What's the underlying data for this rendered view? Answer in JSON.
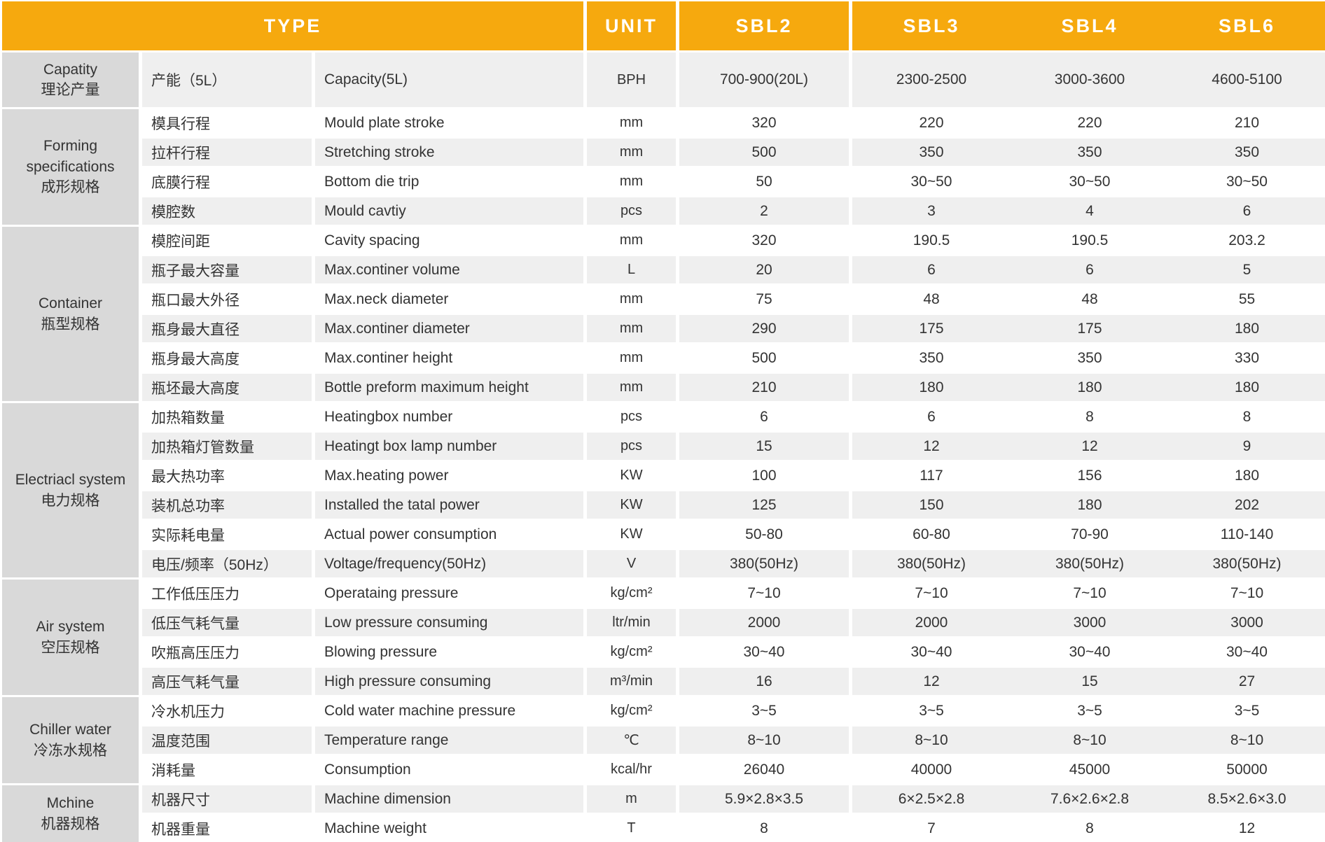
{
  "header": {
    "type_label": "TYPE",
    "unit_label": "UNIT",
    "models": [
      "SBL2",
      "SBL3",
      "SBL4",
      "SBL6"
    ]
  },
  "colors": {
    "header_bg": "#F6A90E",
    "header_text": "#FFFFFF",
    "group_bg": "#D9D9D9",
    "stripe_bg": "#EFEFEF",
    "row_bg": "#FFFFFF",
    "text": "#333333"
  },
  "groups": [
    {
      "name_en": "Capatity",
      "name_cn": "理论产量",
      "rows": [
        {
          "cn": "产能（5L）",
          "en": "Capacity(5L)",
          "unit": "BPH",
          "values": [
            "700-900(20L)",
            "2300-2500",
            "3000-3600",
            "4600-5100"
          ]
        }
      ]
    },
    {
      "name_en": "Forming specifications",
      "name_cn": "成形规格",
      "rows": [
        {
          "cn": "模具行程",
          "en": "Mould plate stroke",
          "unit": "mm",
          "values": [
            "320",
            "220",
            "220",
            "210"
          ]
        },
        {
          "cn": "拉杆行程",
          "en": "Stretching stroke",
          "unit": "mm",
          "values": [
            "500",
            "350",
            "350",
            "350"
          ]
        },
        {
          "cn": "底膜行程",
          "en": "Bottom die trip",
          "unit": "mm",
          "values": [
            "50",
            "30~50",
            "30~50",
            "30~50"
          ]
        },
        {
          "cn": "模腔数",
          "en": "Mould cavtiy",
          "unit": "pcs",
          "values": [
            "2",
            "3",
            "4",
            "6"
          ]
        }
      ]
    },
    {
      "name_en": "Container",
      "name_cn": "瓶型规格",
      "rows": [
        {
          "cn": "模腔间距",
          "en": "Cavity spacing",
          "unit": "mm",
          "values": [
            "320",
            "190.5",
            "190.5",
            "203.2"
          ]
        },
        {
          "cn": "瓶子最大容量",
          "en": "Max.continer volume",
          "unit": "L",
          "values": [
            "20",
            "6",
            "6",
            "5"
          ]
        },
        {
          "cn": "瓶口最大外径",
          "en": "Max.neck diameter",
          "unit": "mm",
          "values": [
            "75",
            "48",
            "48",
            "55"
          ]
        },
        {
          "cn": "瓶身最大直径",
          "en": "Max.continer diameter",
          "unit": "mm",
          "values": [
            "290",
            "175",
            "175",
            "180"
          ]
        },
        {
          "cn": "瓶身最大高度",
          "en": "Max.continer height",
          "unit": "mm",
          "values": [
            "500",
            "350",
            "350",
            "330"
          ]
        },
        {
          "cn": "瓶坯最大高度",
          "en": "Bottle preform maximum height",
          "unit": "mm",
          "values": [
            "210",
            "180",
            "180",
            "180"
          ]
        }
      ]
    },
    {
      "name_en": "Electriacl system",
      "name_cn": "电力规格",
      "rows": [
        {
          "cn": "加热箱数量",
          "en": "Heatingbox number",
          "unit": "pcs",
          "values": [
            "6",
            "6",
            "8",
            "8"
          ]
        },
        {
          "cn": "加热箱灯管数量",
          "en": "Heatingt box lamp number",
          "unit": "pcs",
          "values": [
            "15",
            "12",
            "12",
            "9"
          ]
        },
        {
          "cn": "最大热功率",
          "en": "Max.heating power",
          "unit": "KW",
          "values": [
            "100",
            "117",
            "156",
            "180"
          ]
        },
        {
          "cn": "装机总功率",
          "en": "Installed the tatal power",
          "unit": "KW",
          "values": [
            "125",
            "150",
            "180",
            "202"
          ]
        },
        {
          "cn": "实际耗电量",
          "en": "Actual power consumption",
          "unit": "KW",
          "values": [
            "50-80",
            "60-80",
            "70-90",
            "110-140"
          ]
        },
        {
          "cn": "电压/频率（50Hz）",
          "en": "Voltage/frequency(50Hz)",
          "unit": "V",
          "values": [
            "380(50Hz)",
            "380(50Hz)",
            "380(50Hz)",
            "380(50Hz)"
          ]
        }
      ]
    },
    {
      "name_en": "Air system",
      "name_cn": "空压规格",
      "rows": [
        {
          "cn": "工作低压压力",
          "en": "Operataing pressure",
          "unit": "kg/cm²",
          "values": [
            "7~10",
            "7~10",
            "7~10",
            "7~10"
          ]
        },
        {
          "cn": "低压气耗气量",
          "en": "Low pressure consuming",
          "unit": "ltr/min",
          "values": [
            "2000",
            "2000",
            "3000",
            "3000"
          ]
        },
        {
          "cn": "吹瓶高压压力",
          "en": "Blowing pressure",
          "unit": "kg/cm²",
          "values": [
            "30~40",
            "30~40",
            "30~40",
            "30~40"
          ]
        },
        {
          "cn": "高压气耗气量",
          "en": "High pressure consuming",
          "unit": "m³/min",
          "values": [
            "16",
            "12",
            "15",
            "27"
          ]
        }
      ]
    },
    {
      "name_en": "Chiller water",
      "name_cn": "冷冻水规格",
      "rows": [
        {
          "cn": "冷水机压力",
          "en": "Cold water machine pressure",
          "unit": "kg/cm²",
          "values": [
            "3~5",
            "3~5",
            "3~5",
            "3~5"
          ]
        },
        {
          "cn": "温度范围",
          "en": "Temperature range",
          "unit": "℃",
          "values": [
            "8~10",
            "8~10",
            "8~10",
            "8~10"
          ]
        },
        {
          "cn": "消耗量",
          "en": "Consumption",
          "unit": "kcal/hr",
          "values": [
            "26040",
            "40000",
            "45000",
            "50000"
          ]
        }
      ]
    },
    {
      "name_en": "Mchine",
      "name_cn": "机器规格",
      "rows": [
        {
          "cn": "机器尺寸",
          "en": "Machine dimension",
          "unit": "m",
          "values": [
            "5.9×2.8×3.5",
            "6×2.5×2.8",
            "7.6×2.6×2.8",
            "8.5×2.6×3.0"
          ]
        },
        {
          "cn": "机器重量",
          "en": "Machine weight",
          "unit": "T",
          "values": [
            "8",
            "7",
            "8",
            "12"
          ]
        }
      ]
    }
  ]
}
